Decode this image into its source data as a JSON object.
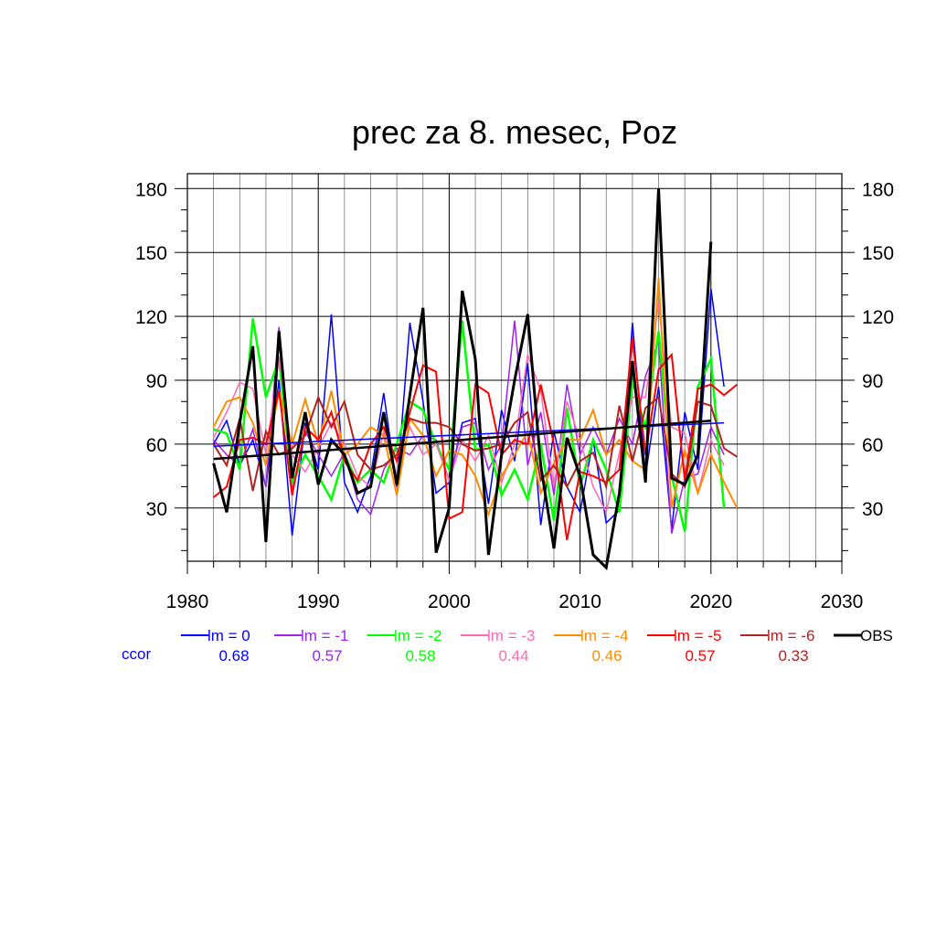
{
  "chart_data": {
    "type": "line",
    "title": "prec za 8. mesec, Poz",
    "xlabel": "",
    "ylabel": "",
    "xlim": [
      1980,
      2030
    ],
    "ylim": [
      5,
      187
    ],
    "x_ticks": [
      "1980",
      "1990",
      "2000",
      "2010",
      "2020",
      "2030"
    ],
    "y_ticks": [
      "30",
      "60",
      "90",
      "120",
      "150",
      "180"
    ],
    "grid": true,
    "legend_placement": "bottom",
    "ccor_label": "ccor",
    "series": [
      {
        "name": "lm = 0",
        "color": "#0000ff",
        "ccor": "0.68",
        "width": 1.5,
        "x": [
          1982,
          1983,
          1984,
          1985,
          1986,
          1987,
          1988,
          1989,
          1990,
          1991,
          1992,
          1993,
          1994,
          1995,
          1996,
          1997,
          1998,
          1999,
          2000,
          2001,
          2002,
          2003,
          2004,
          2005,
          2006,
          2007,
          2008,
          2009,
          2010,
          2011,
          2012,
          2013,
          2014,
          2015,
          2016,
          2017,
          2018,
          2019,
          2020,
          2021
        ],
        "y": [
          60,
          71,
          50,
          62,
          40,
          90,
          17,
          70,
          48,
          121,
          42,
          28,
          45,
          84,
          40,
          117,
          80,
          37,
          42,
          70,
          72,
          32,
          76,
          52,
          98,
          22,
          66,
          40,
          28,
          62,
          23,
          29,
          117,
          45,
          87,
          20,
          75,
          48,
          133,
          87
        ]
      },
      {
        "name": "lm = -1",
        "color": "#a020f0",
        "ccor": "0.57",
        "width": 1.5,
        "x": [
          1982,
          1983,
          1984,
          1985,
          1986,
          1987,
          1988,
          1989,
          1990,
          1991,
          1992,
          1993,
          1994,
          1995,
          1996,
          1997,
          1998,
          1999,
          2000,
          2001,
          2002,
          2003,
          2004,
          2005,
          2006,
          2007,
          2008,
          2009,
          2010,
          2011,
          2012,
          2013,
          2014,
          2015,
          2016,
          2017,
          2018,
          2019,
          2020,
          2021
        ],
        "y": [
          62,
          55,
          50,
          67,
          40,
          115,
          38,
          66,
          55,
          45,
          56,
          34,
          27,
          48,
          58,
          55,
          64,
          62,
          43,
          68,
          70,
          48,
          60,
          118,
          50,
          75,
          36,
          88,
          55,
          68,
          55,
          72,
          60,
          92,
          108,
          18,
          44,
          46,
          68,
          55
        ]
      },
      {
        "name": "lm = -2",
        "color": "#00ff00",
        "ccor": "0.58",
        "width": 2.5,
        "x": [
          1982,
          1983,
          1984,
          1985,
          1986,
          1987,
          1988,
          1989,
          1990,
          1991,
          1992,
          1993,
          1994,
          1995,
          1996,
          1997,
          1998,
          1999,
          2000,
          2001,
          2002,
          2003,
          2004,
          2005,
          2006,
          2007,
          2008,
          2009,
          2010,
          2011,
          2012,
          2013,
          2014,
          2015,
          2016,
          2017,
          2018,
          2019,
          2020,
          2021
        ],
        "y": [
          67,
          65,
          48,
          119,
          82,
          100,
          42,
          55,
          45,
          34,
          55,
          42,
          48,
          42,
          60,
          80,
          76,
          60,
          48,
          118,
          57,
          60,
          36,
          48,
          34,
          60,
          24,
          77,
          40,
          62,
          48,
          28,
          90,
          67,
          113,
          45,
          19,
          87,
          100,
          30
        ]
      },
      {
        "name": "lm = -3",
        "color": "#ff69b4",
        "ccor": "0.44",
        "width": 1.5,
        "x": [
          1982,
          1983,
          1984,
          1985,
          1986,
          1987,
          1988,
          1989,
          1990,
          1991,
          1992,
          1993,
          1994,
          1995,
          1996,
          1997,
          1998,
          1999,
          2000,
          2001,
          2002,
          2003,
          2004,
          2005,
          2006,
          2007,
          2008,
          2009,
          2010,
          2011,
          2012,
          2013,
          2014,
          2015,
          2016,
          2017,
          2018,
          2019,
          2020,
          2021
        ],
        "y": [
          63,
          75,
          89,
          86,
          55,
          101,
          55,
          47,
          58,
          70,
          60,
          45,
          40,
          66,
          45,
          68,
          55,
          60,
          43,
          62,
          52,
          64,
          42,
          60,
          102,
          85,
          40,
          80,
          62,
          40,
          28,
          56,
          82,
          82,
          126,
          68,
          65,
          37,
          62,
          50
        ]
      },
      {
        "name": "lm = -4",
        "color": "#ff8c00",
        "ccor": "0.46",
        "width": 2,
        "x": [
          1982,
          1983,
          1984,
          1985,
          1986,
          1987,
          1988,
          1989,
          1990,
          1991,
          1992,
          1993,
          1994,
          1995,
          1996,
          1997,
          1998,
          1999,
          2000,
          2001,
          2002,
          2003,
          2004,
          2005,
          2006,
          2007,
          2008,
          2009,
          2010,
          2011,
          2012,
          2013,
          2014,
          2015,
          2016,
          2017,
          2018,
          2019,
          2020,
          2021,
          2022
        ],
        "y": [
          68,
          80,
          82,
          70,
          50,
          85,
          60,
          81,
          60,
          85,
          55,
          60,
          68,
          64,
          36,
          72,
          64,
          45,
          57,
          55,
          45,
          27,
          45,
          55,
          66,
          37,
          51,
          62,
          62,
          76,
          55,
          62,
          52,
          48,
          138,
          30,
          57,
          37,
          55,
          42,
          30
        ]
      },
      {
        "name": "lm = -5",
        "color": "#ff0000",
        "ccor": "0.57",
        "width": 2,
        "x": [
          1982,
          1983,
          1984,
          1985,
          1986,
          1987,
          1988,
          1989,
          1990,
          1991,
          1992,
          1993,
          1994,
          1995,
          1996,
          1997,
          1998,
          1999,
          2000,
          2001,
          2002,
          2003,
          2004,
          2005,
          2006,
          2007,
          2008,
          2009,
          2010,
          2011,
          2012,
          2013,
          2014,
          2015,
          2016,
          2017,
          2018,
          2019,
          2020,
          2021,
          2022
        ],
        "y": [
          35,
          40,
          62,
          63,
          60,
          85,
          36,
          68,
          62,
          75,
          52,
          43,
          60,
          68,
          52,
          75,
          97,
          94,
          25,
          28,
          88,
          84,
          55,
          62,
          60,
          88,
          60,
          15,
          47,
          45,
          42,
          48,
          110,
          55,
          95,
          102,
          43,
          86,
          88,
          83,
          88
        ]
      },
      {
        "name": "lm = -6",
        "color": "#b22222",
        "ccor": "0.33",
        "width": 2,
        "x": [
          1982,
          1983,
          1984,
          1985,
          1986,
          1987,
          1988,
          1989,
          1990,
          1991,
          1992,
          1993,
          1994,
          1995,
          1996,
          1997,
          1998,
          1999,
          2000,
          2001,
          2002,
          2003,
          2004,
          2005,
          2006,
          2007,
          2008,
          2009,
          2010,
          2011,
          2012,
          2013,
          2014,
          2015,
          2016,
          2017,
          2018,
          2019,
          2020,
          2021,
          2022
        ],
        "y": [
          60,
          50,
          72,
          38,
          66,
          55,
          58,
          64,
          82,
          68,
          80,
          55,
          48,
          50,
          55,
          72,
          70,
          70,
          68,
          60,
          57,
          58,
          60,
          70,
          75,
          43,
          50,
          40,
          52,
          56,
          40,
          78,
          52,
          77,
          82,
          46,
          40,
          80,
          78,
          58,
          54
        ]
      },
      {
        "name": "OBS",
        "color": "#000000",
        "ccor": "",
        "width": 3,
        "x": [
          1982,
          1983,
          1984,
          1985,
          1986,
          1987,
          1988,
          1989,
          1990,
          1991,
          1992,
          1993,
          1994,
          1995,
          1996,
          1997,
          1998,
          1999,
          2000,
          2001,
          2002,
          2003,
          2004,
          2005,
          2006,
          2007,
          2008,
          2009,
          2010,
          2011,
          2012,
          2013,
          2014,
          2015,
          2016,
          2017,
          2018,
          2019,
          2020
        ],
        "y": [
          51,
          28,
          70,
          106,
          14,
          113,
          44,
          75,
          41,
          62,
          55,
          37,
          40,
          75,
          41,
          83,
          124,
          9,
          30,
          132,
          100,
          8,
          55,
          90,
          121,
          50,
          11,
          63,
          45,
          8,
          2,
          37,
          99,
          42,
          180,
          44,
          41,
          55,
          155
        ]
      }
    ],
    "trend_lines": [
      {
        "series": "lm = 0",
        "color": "#0000ff",
        "x": [
          1982,
          2021
        ],
        "y": [
          59,
          70
        ]
      },
      {
        "series": "OBS",
        "color": "#000000",
        "x": [
          1982,
          2020
        ],
        "y": [
          53,
          71
        ]
      }
    ]
  }
}
